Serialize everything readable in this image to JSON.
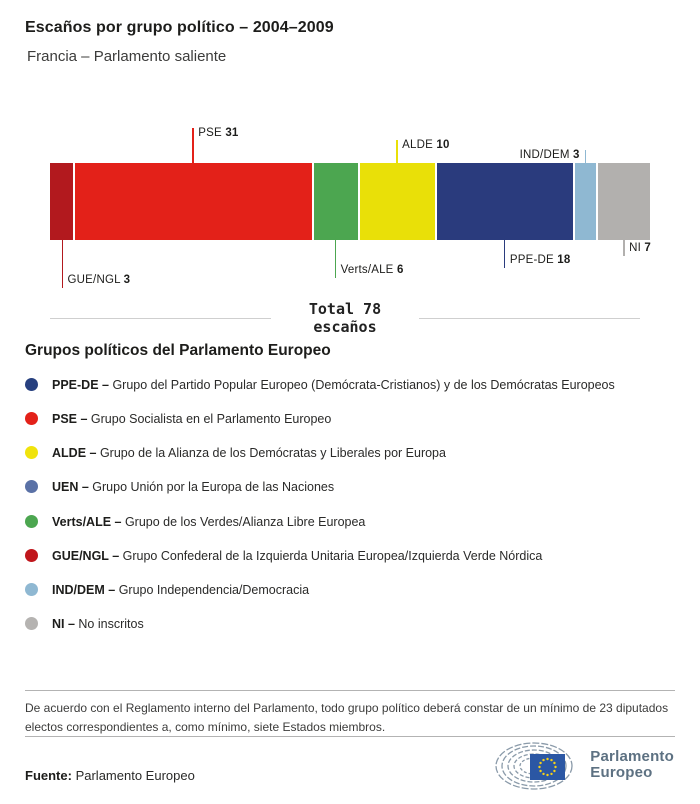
{
  "header": {
    "title": "Escaños por grupo político – 2004–2009",
    "subtitle": "Francia – Parlamento saliente"
  },
  "chart_data": {
    "type": "bar",
    "title": "Escaños por grupo político – 2004–2009",
    "subtitle": "Francia – Parlamento saliente",
    "total_seats": 78,
    "total_label": "Total 78",
    "total_sublabel": "escaños",
    "orientation": "horizontal-stacked",
    "segments": [
      {
        "group": "GUE/NGL",
        "seats": 3,
        "color": "#b2191e",
        "callout": {
          "side": "below",
          "len": 48,
          "text_side": "right"
        }
      },
      {
        "group": "PSE",
        "seats": 31,
        "color": "#e32119",
        "callout": {
          "side": "above",
          "len": 35,
          "text_side": "right"
        }
      },
      {
        "group": "Verts/ALE",
        "seats": 6,
        "color": "#4ca650",
        "callout": {
          "side": "below",
          "len": 38,
          "text_side": "right"
        }
      },
      {
        "group": "ALDE",
        "seats": 10,
        "color": "#e9e008",
        "callout": {
          "side": "above",
          "len": 23,
          "text_side": "right"
        }
      },
      {
        "group": "PPE-DE",
        "seats": 18,
        "color": "#2a3b7d",
        "callout": {
          "side": "below",
          "len": 28,
          "text_side": "right"
        }
      },
      {
        "group": "IND/DEM",
        "seats": 3,
        "color": "#8fb8d2",
        "callout": {
          "side": "above",
          "len": 13,
          "text_side": "left"
        }
      },
      {
        "group": "NI",
        "seats": 7,
        "color": "#b2b0ae",
        "callout": {
          "side": "below",
          "len": 16,
          "text_side": "right"
        }
      }
    ]
  },
  "legend": {
    "heading": "Grupos políticos del Parlamento Europeo",
    "items": [
      {
        "abbr": "PPE-DE",
        "color": "#27407f",
        "desc": "Grupo del Partido Popular Europeo (Demócrata-Cristianos) y de los Demócratas Europeos"
      },
      {
        "abbr": "PSE",
        "color": "#e32119",
        "desc": "Grupo Socialista en el Parlamento Europeo"
      },
      {
        "abbr": "ALDE",
        "color": "#f0e30c",
        "desc": "Grupo de la Alianza de los Demócratas y Liberales por Europa"
      },
      {
        "abbr": "UEN",
        "color": "#5a71a6",
        "desc": "Grupo Unión por la Europa de las Naciones"
      },
      {
        "abbr": "Verts/ALE",
        "color": "#4ca650",
        "desc": "Grupo de los Verdes/Alianza Libre Europea"
      },
      {
        "abbr": "GUE/NGL",
        "color": "#c0161c",
        "desc": "Grupo Confederal de la Izquierda Unitaria Europea/Izquierda Verde Nórdica"
      },
      {
        "abbr": "IND/DEM",
        "color": "#8fb8d2",
        "desc": "Grupo Independencia/Democracia"
      },
      {
        "abbr": "NI",
        "color": "#b5b3b1",
        "desc": "No inscritos"
      }
    ]
  },
  "footnote": "De acuerdo con el Reglamento interno del Parlamento, todo grupo político deberá constar de un mínimo de 23 diputados electos correspondientes a, como mínimo, siete Estados miembros.",
  "source": {
    "label": "Fuente:",
    "value": "Parlamento Europeo"
  },
  "logo": {
    "line1": "Parlamento",
    "line2": "Europeo",
    "flag_color": "#2b57a4",
    "star_color": "#f7d117",
    "arc_color": "#8a9aa9"
  }
}
